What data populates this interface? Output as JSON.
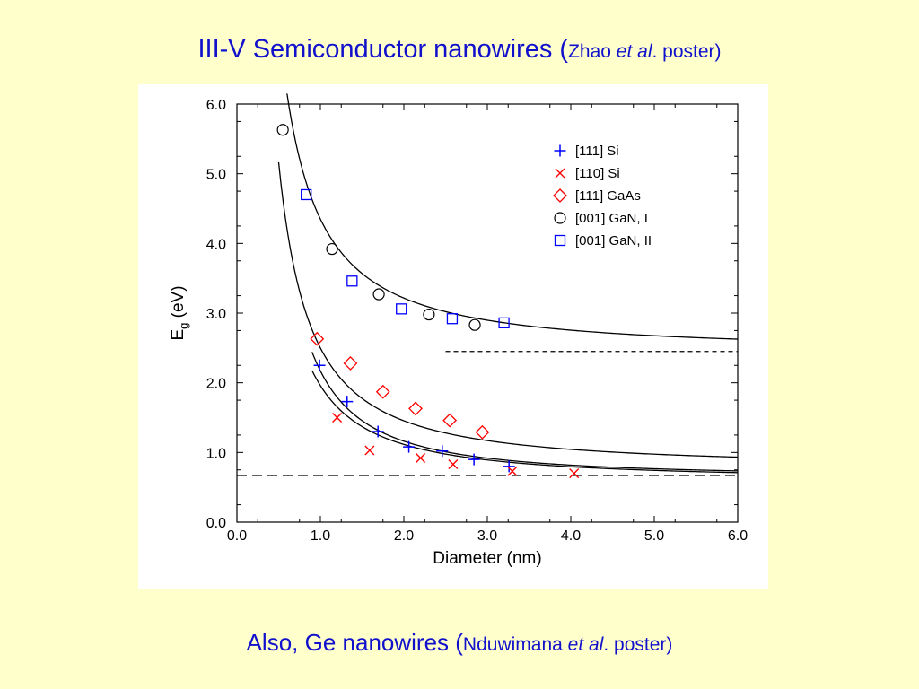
{
  "slide": {
    "title_main": "III-V Semiconductor nanowires (",
    "title_source_author": "Zhao ",
    "title_source_etal": "et al",
    "title_source_tail": ". poster)",
    "footer_main": "Also, Ge nanowires (",
    "footer_source_author": "Nduwimana ",
    "footer_source_etal": "et al",
    "footer_source_tail": ". poster)"
  },
  "colors": {
    "background": "#FFFFCC",
    "title_text": "#1111CC",
    "series_si_111": "#0000FF",
    "series_si_110": "#FF0000",
    "series_gaas_111": "#FF0000",
    "series_gan_001_I": "#000000",
    "series_gan_001_II": "#0000FF"
  },
  "chart_data": {
    "type": "scatter",
    "xlabel": "Diameter (nm)",
    "ylabel_main": "E",
    "ylabel_sub": "g",
    "ylabel_tail": " (eV)",
    "xlim": [
      0,
      6
    ],
    "ylim": [
      0,
      6
    ],
    "x_ticks": [
      "0.0",
      "1.0",
      "2.0",
      "3.0",
      "4.0",
      "5.0",
      "6.0"
    ],
    "y_ticks": [
      "0.0",
      "1.0",
      "2.0",
      "3.0",
      "4.0",
      "5.0",
      "6.0"
    ],
    "grid": false,
    "legend_position": "top-right",
    "series": [
      {
        "name": "[111] Si",
        "marker": "plus",
        "color": "#0000FF",
        "points": [
          [
            0.99,
            2.25
          ],
          [
            1.32,
            1.73
          ],
          [
            1.69,
            1.3
          ],
          [
            2.06,
            1.08
          ],
          [
            2.46,
            1.02
          ],
          [
            2.84,
            0.9
          ],
          [
            3.26,
            0.8
          ]
        ]
      },
      {
        "name": "[110] Si",
        "marker": "x",
        "color": "#FF0000",
        "points": [
          [
            1.2,
            1.5
          ],
          [
            1.59,
            1.03
          ],
          [
            2.2,
            0.92
          ],
          [
            2.59,
            0.83
          ],
          [
            3.3,
            0.73
          ],
          [
            4.04,
            0.7
          ]
        ]
      },
      {
        "name": "[111] GaAs",
        "marker": "diamond",
        "color": "#FF0000",
        "points": [
          [
            0.96,
            2.63
          ],
          [
            1.36,
            2.28
          ],
          [
            1.75,
            1.87
          ],
          [
            2.14,
            1.63
          ],
          [
            2.55,
            1.46
          ],
          [
            2.94,
            1.29
          ]
        ]
      },
      {
        "name": "[001] GaN, I",
        "marker": "circle",
        "color": "#000000",
        "points": [
          [
            0.55,
            5.63
          ],
          [
            1.14,
            3.92
          ],
          [
            1.7,
            3.27
          ],
          [
            2.3,
            2.98
          ],
          [
            2.85,
            2.83
          ]
        ]
      },
      {
        "name": "[001] GaN, II",
        "marker": "square",
        "color": "#0000FF",
        "points": [
          [
            0.83,
            4.7
          ],
          [
            1.38,
            3.46
          ],
          [
            1.97,
            3.06
          ],
          [
            2.58,
            2.92
          ],
          [
            3.2,
            2.86
          ]
        ]
      }
    ],
    "fit_curves": [
      {
        "x0": 0.6,
        "x1": 6.0,
        "offset": 2.44,
        "a": 1.91,
        "p": 1.3
      },
      {
        "x0": 0.5,
        "x1": 6.0,
        "offset": 0.78,
        "a": 1.72,
        "p": 1.35
      },
      {
        "x0": 0.9,
        "x1": 6.0,
        "offset": 0.64,
        "a": 1.53,
        "p": 1.55
      },
      {
        "x0": 0.9,
        "x1": 6.0,
        "offset": 0.6,
        "a": 1.36,
        "p": 1.4
      }
    ],
    "reference_lines": [
      {
        "y": 2.45,
        "x0": 2.5,
        "x1": 6.0,
        "style": "short-dash"
      },
      {
        "y": 0.67,
        "x0": 0.0,
        "x1": 6.0,
        "style": "long-dash"
      }
    ]
  }
}
